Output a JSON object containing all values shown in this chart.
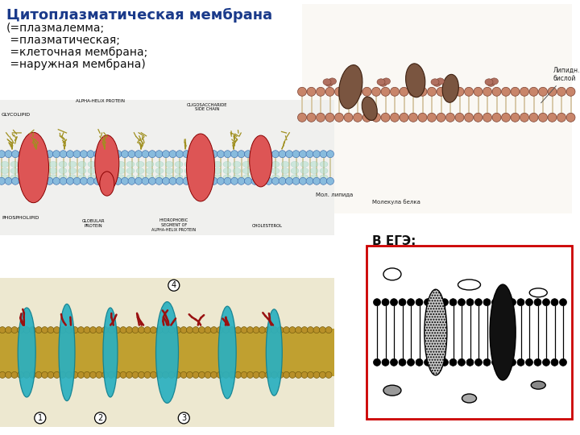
{
  "title": "Цитоплазматическая мембрана",
  "title_color": "#1a3a8a",
  "title_fontsize": 13,
  "subtitle_lines": [
    "(=плазмалемма;",
    " =плазматическая;",
    " =клеточная мембрана;",
    " =наружная мембрана)"
  ],
  "subtitle_fontsize": 10,
  "subtitle_color": "#111111",
  "ege_label": "В ЕГЭ:",
  "ege_label_fontsize": 11,
  "ege_label_color": "#111111",
  "ege_box_color": "#cc0000",
  "background_color": "#ffffff",
  "fig_width": 7.2,
  "fig_height": 5.4,
  "dpi": 100
}
